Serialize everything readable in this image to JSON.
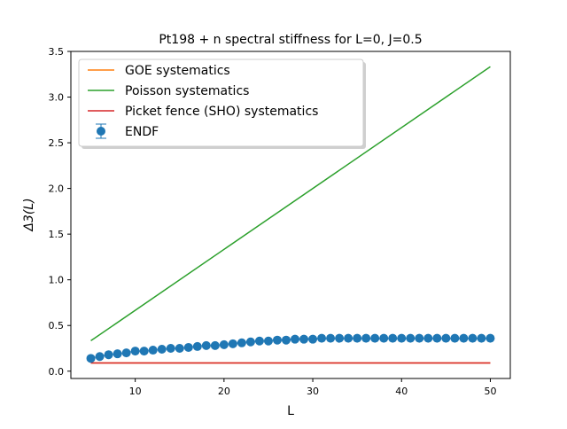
{
  "figure": {
    "title": "Pt198 + n  spectral stiffness for L=0, J=0.5"
  },
  "chart_data": {
    "type": "line",
    "title": "Pt198 + n  spectral stiffness for L=0, J=0.5",
    "xlabel": "L",
    "ylabel": "Δ3(L)",
    "xlim": [
      2.75,
      52.25
    ],
    "ylim": [
      -0.08,
      3.5
    ],
    "xticks": [
      10,
      20,
      30,
      40,
      50
    ],
    "xtick_labels": [
      "10",
      "20",
      "30",
      "40",
      "50"
    ],
    "yticks": [
      0.0,
      0.5,
      1.0,
      1.5,
      2.0,
      2.5,
      3.0,
      3.5
    ],
    "ytick_labels": [
      "0.0",
      "0.5",
      "1.0",
      "1.5",
      "2.0",
      "2.5",
      "3.0",
      "3.5"
    ],
    "grid": false,
    "legend_position": "top-left",
    "series": [
      {
        "name": "GOE systematics",
        "kind": "line",
        "color": "#ff7f0e",
        "x": [
          5,
          50
        ],
        "y": [
          0.09,
          0.09
        ]
      },
      {
        "name": "Poisson systematics",
        "kind": "line",
        "color": "#2ca02c",
        "x": [
          5,
          50
        ],
        "y": [
          0.333,
          3.333
        ]
      },
      {
        "name": "Picket fence (SHO) systematics",
        "kind": "line",
        "color": "#d62728",
        "x": [
          5,
          50
        ],
        "y": [
          0.09,
          0.09
        ]
      },
      {
        "name": "ENDF",
        "kind": "errorbar",
        "color": "#1f77b4",
        "x": [
          5,
          6,
          7,
          8,
          9,
          10,
          11,
          12,
          13,
          14,
          15,
          16,
          17,
          18,
          19,
          20,
          21,
          22,
          23,
          24,
          25,
          26,
          27,
          28,
          29,
          30,
          31,
          32,
          33,
          34,
          35,
          36,
          37,
          38,
          39,
          40,
          41,
          42,
          43,
          44,
          45,
          46,
          47,
          48,
          49,
          50
        ],
        "y": [
          0.14,
          0.16,
          0.18,
          0.19,
          0.2,
          0.22,
          0.22,
          0.23,
          0.24,
          0.25,
          0.25,
          0.26,
          0.27,
          0.28,
          0.28,
          0.29,
          0.3,
          0.31,
          0.32,
          0.33,
          0.33,
          0.34,
          0.34,
          0.35,
          0.35,
          0.35,
          0.36,
          0.36,
          0.36,
          0.36,
          0.36,
          0.36,
          0.36,
          0.36,
          0.36,
          0.36,
          0.36,
          0.36,
          0.36,
          0.36,
          0.36,
          0.36,
          0.36,
          0.36,
          0.36,
          0.36
        ],
        "yerr": 0.005
      }
    ]
  }
}
